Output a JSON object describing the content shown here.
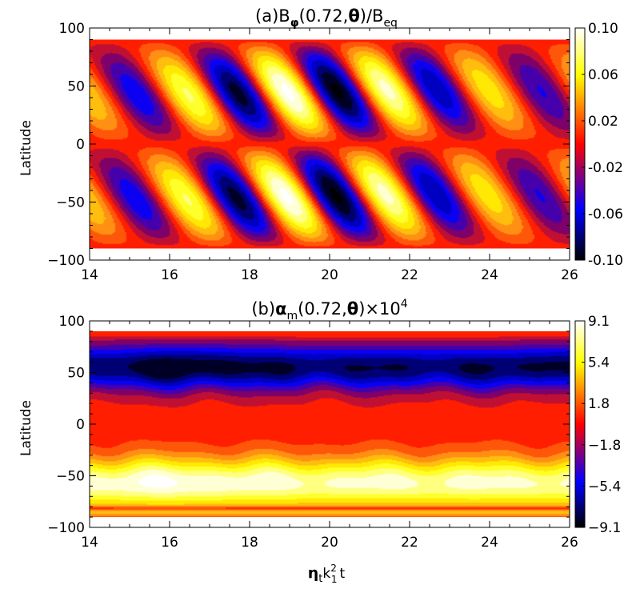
{
  "chart_data": [
    {
      "type": "heatmap",
      "title": "(a)Bφ(0.72,θ)/Beq",
      "title_parts": {
        "prefix": "(a)B",
        "sub1": "φ",
        "mid": "(0.72,",
        "theta": "θ",
        "mid2": ")/B",
        "sub2": "eq"
      },
      "xlabel": "",
      "ylabel": "Latitude",
      "xlim": [
        14,
        26
      ],
      "ylim": [
        -100,
        100
      ],
      "data_ylim": [
        -90,
        90
      ],
      "xticks": [
        "14",
        "16",
        "18",
        "20",
        "22",
        "24",
        "26"
      ],
      "yticks": [
        "100",
        "50",
        "0",
        "−50",
        "−100"
      ],
      "colorbar": {
        "range": [
          -0.1,
          0.1
        ],
        "ticks": [
          "0.10",
          "0.06",
          "0.02",
          "-0.02",
          "-0.06",
          "-0.10"
        ]
      },
      "colormap": "red-temperature",
      "pattern": "dynamo wave: bands migrate equatorward with cycle period ~2.6 time units; antisymmetric about equator",
      "amplitude_max": 0.1
    },
    {
      "type": "heatmap",
      "title": "(b)αm(0.72,θ)×10^4",
      "title_parts": {
        "prefix": "(b)",
        "alpha": "α",
        "sub1": "m",
        "mid": "(0.72,",
        "theta": "θ",
        "mid2": ")×10",
        "sup": "4"
      },
      "xlabel": "ηt k1² t",
      "xlabel_parts": {
        "eta": "η",
        "sub_t": "t",
        "k": "k",
        "sup2": "2",
        "sub1": "1",
        "t": "t"
      },
      "ylabel": "Latitude",
      "xlim": [
        14,
        26
      ],
      "ylim": [
        -100,
        100
      ],
      "data_ylim": [
        -90,
        90
      ],
      "xticks": [
        "14",
        "16",
        "18",
        "20",
        "22",
        "24",
        "26"
      ],
      "yticks": [
        "100",
        "50",
        "0",
        "−50",
        "−100"
      ],
      "colorbar": {
        "range": [
          -9.1,
          9.1
        ],
        "ticks": [
          "9.1",
          "5.4",
          "1.8",
          "−1.8",
          "−5.4",
          "−9.1"
        ]
      },
      "colormap": "red-temperature",
      "pattern": "nearly steady: negative (blue) in northern hemisphere peaking near 60°, positive (yellow) in south peaking near −60°",
      "amplitude_max": 9.1
    }
  ],
  "colors": {
    "scale": [
      "#000000",
      "#0000ff",
      "#ff0000",
      "#ffff00",
      "#ffffff"
    ]
  }
}
